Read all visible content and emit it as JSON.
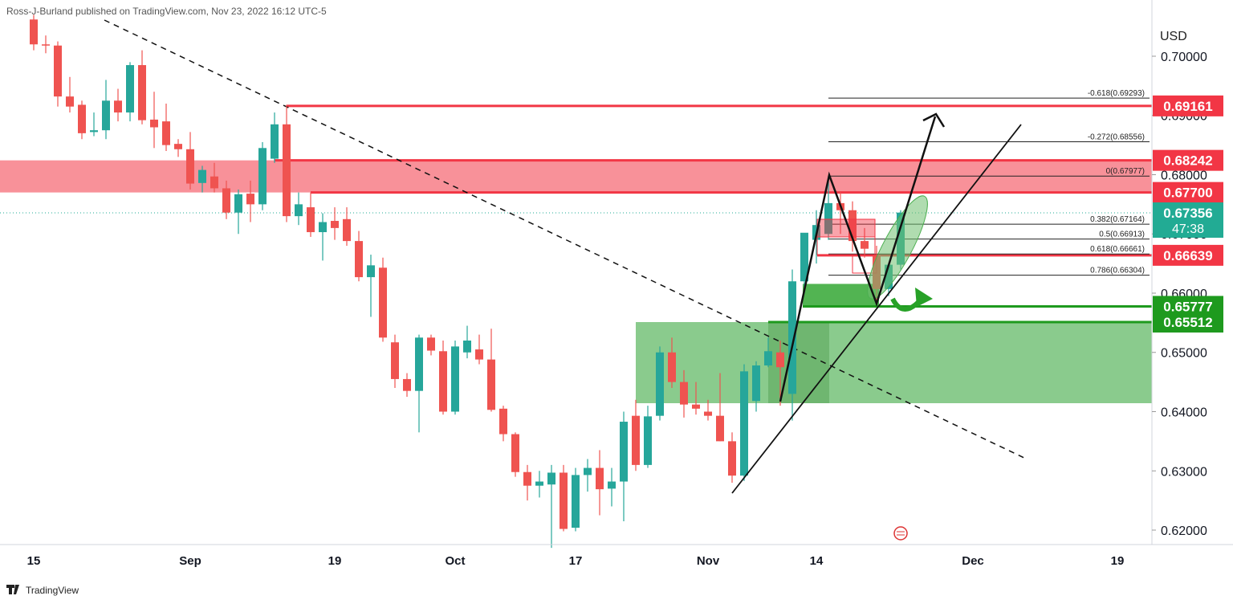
{
  "header": {
    "publisher": "Ross-J-Burland published on TradingView.com, Nov 23, 2022 16:12 UTC-5",
    "footer": "TradingView"
  },
  "chart_data": {
    "type": "candlestick",
    "currency": "USD",
    "categories": [
      "15",
      null,
      null,
      null,
      null,
      null,
      null,
      null,
      null,
      null,
      null,
      null,
      null,
      "Sep",
      null,
      null,
      null,
      null,
      null,
      null,
      null,
      null,
      null,
      null,
      null,
      "19",
      null,
      null,
      null,
      null,
      null,
      null,
      null,
      null,
      null,
      "Oct",
      null,
      null,
      null,
      null,
      null,
      null,
      null,
      null,
      null,
      "17",
      null,
      null,
      null,
      null,
      null,
      null,
      null,
      null,
      null,
      null,
      "Nov",
      null,
      null,
      null,
      null,
      null,
      null,
      null,
      null,
      "14",
      null,
      null,
      null,
      null,
      null,
      null,
      null,
      null,
      null,
      null,
      null,
      null,
      "Dec",
      null,
      null,
      null,
      null,
      null,
      null,
      null,
      null,
      null,
      null,
      null,
      "19"
    ],
    "open": [
      0.7062,
      0.702,
      0.7018,
      0.6932,
      0.6918,
      0.6872,
      0.6875,
      0.6925,
      0.6905,
      0.6985,
      0.6893,
      0.689,
      0.6852,
      0.6843,
      0.6786,
      0.6797,
      0.6777,
      0.6736,
      0.6768,
      0.675,
      0.6827,
      0.6885,
      0.673,
      0.6745,
      0.6703,
      0.6722,
      0.6725,
      0.6688,
      0.6627,
      0.6643,
      0.6517,
      0.6455,
      0.6435,
      0.6525,
      0.6502,
      0.64,
      0.65,
      0.6505,
      0.6488,
      0.6405,
      0.6362,
      0.6298,
      0.6275,
      0.6277,
      0.6297,
      0.6204,
      0.6293,
      0.6305,
      0.627,
      0.6282,
      0.6393,
      0.631,
      0.6393,
      0.65,
      0.645,
      0.6412,
      0.64,
      0.6393,
      0.635,
      0.6292,
      0.6418,
      0.6478,
      0.65,
      0.643,
      0.662,
      0.669,
      0.67,
      0.6752,
      0.674,
      0.6688,
      0.6665,
      0.6607,
      0.6648,
      null,
      null,
      null,
      null,
      null,
      null,
      null,
      null,
      null,
      null,
      null,
      null,
      null,
      null,
      null,
      null,
      null,
      null
    ],
    "high": [
      0.707,
      0.7035,
      0.7025,
      0.6965,
      0.6925,
      0.6905,
      0.696,
      0.6945,
      0.699,
      0.701,
      0.694,
      0.692,
      0.686,
      0.6872,
      0.6815,
      0.682,
      0.679,
      0.6775,
      0.679,
      0.6855,
      0.6905,
      0.6918,
      0.677,
      0.677,
      0.6735,
      0.6745,
      0.6745,
      0.6705,
      0.6665,
      0.666,
      0.653,
      0.6465,
      0.653,
      0.653,
      0.652,
      0.652,
      0.6545,
      0.653,
      0.654,
      0.641,
      0.6365,
      0.631,
      0.63,
      0.631,
      0.631,
      0.6305,
      0.632,
      0.6335,
      0.6305,
      0.64,
      0.642,
      0.641,
      0.651,
      0.6525,
      0.647,
      0.645,
      0.642,
      0.6465,
      0.6365,
      0.648,
      0.6485,
      0.6525,
      0.652,
      0.664,
      0.67,
      0.674,
      0.6798,
      0.677,
      0.6755,
      0.671,
      0.668,
      0.665,
      0.674,
      null,
      null,
      null,
      null,
      null,
      null,
      null,
      null,
      null,
      null,
      null,
      null,
      null,
      null,
      null,
      null,
      null,
      null
    ],
    "low": [
      0.701,
      0.7005,
      0.6915,
      0.6905,
      0.686,
      0.6865,
      0.686,
      0.689,
      0.689,
      0.6885,
      0.6845,
      0.684,
      0.683,
      0.6775,
      0.677,
      0.677,
      0.6725,
      0.67,
      0.672,
      0.674,
      0.682,
      0.672,
      0.6715,
      0.6695,
      0.6655,
      0.669,
      0.668,
      0.662,
      0.656,
      0.6518,
      0.644,
      0.6425,
      0.6365,
      0.6495,
      0.6395,
      0.6395,
      0.649,
      0.648,
      0.64,
      0.635,
      0.629,
      0.625,
      0.6255,
      0.617,
      0.6198,
      0.6198,
      0.6265,
      0.6225,
      0.624,
      0.6215,
      0.63,
      0.6305,
      0.6385,
      0.644,
      0.639,
      0.6395,
      0.6385,
      0.635,
      0.628,
      0.6283,
      0.64,
      0.6475,
      0.641,
      0.6385,
      0.66,
      0.665,
      0.669,
      0.67,
      0.667,
      0.666,
      0.6585,
      0.6595,
      0.664,
      null,
      null,
      null,
      null,
      null,
      null,
      null,
      null,
      null,
      null,
      null,
      null,
      null,
      null,
      null,
      null,
      null,
      null
    ],
    "close": [
      0.702,
      0.7018,
      0.6932,
      0.6915,
      0.687,
      0.6875,
      0.6925,
      0.6905,
      0.6985,
      0.6892,
      0.688,
      0.685,
      0.6843,
      0.6785,
      0.6808,
      0.6777,
      0.6736,
      0.6767,
      0.675,
      0.6845,
      0.6885,
      0.673,
      0.675,
      0.6703,
      0.672,
      0.671,
      0.6688,
      0.6627,
      0.6647,
      0.6525,
      0.6455,
      0.6435,
      0.6525,
      0.6503,
      0.64,
      0.651,
      0.652,
      0.6488,
      0.6403,
      0.6362,
      0.6298,
      0.6275,
      0.6282,
      0.6297,
      0.6202,
      0.6293,
      0.6305,
      0.6269,
      0.6282,
      0.6383,
      0.631,
      0.6392,
      0.65,
      0.645,
      0.6412,
      0.6405,
      0.6393,
      0.635,
      0.6292,
      0.6468,
      0.6478,
      0.6502,
      0.6475,
      0.662,
      0.6702,
      0.6715,
      0.6752,
      0.674,
      0.6688,
      0.6675,
      0.6607,
      0.6648,
      0.6736,
      null,
      null,
      null,
      null,
      null,
      null,
      null,
      null,
      null,
      null,
      null,
      null,
      null,
      null,
      null,
      null,
      null,
      null
    ],
    "up_color": "#26a69a",
    "down_color": "#ef5350",
    "ylim": [
      0.61756,
      0.70949
    ],
    "yticks": [
      {
        "value": 0.7,
        "label": "0.70000"
      },
      {
        "value": 0.69,
        "label": "0.69000"
      },
      {
        "value": 0.68,
        "label": "0.68000"
      },
      {
        "value": 0.67,
        "label": "0.67000"
      },
      {
        "value": 0.66,
        "label": "0.66000"
      },
      {
        "value": 0.65,
        "label": "0.65000"
      },
      {
        "value": 0.64,
        "label": "0.64000"
      },
      {
        "value": 0.63,
        "label": "0.63000"
      },
      {
        "value": 0.62,
        "label": "0.62000"
      }
    ],
    "price_levels": [
      {
        "value": 0.69161,
        "label": "0.69161",
        "color": "#f23645"
      },
      {
        "value": 0.68242,
        "label": "0.68242",
        "color": "#f23645"
      },
      {
        "value": 0.677,
        "label": "0.67700",
        "color": "#f23645"
      },
      {
        "value": 0.67356,
        "label": "0.67356",
        "color": "#22ab94",
        "countdown": "47:38"
      },
      {
        "value": 0.66639,
        "label": "0.66639",
        "color": "#f23645"
      },
      {
        "value": 0.65777,
        "label": "0.65777",
        "color": "#1e9a1e"
      },
      {
        "value": 0.65512,
        "label": "0.65512",
        "color": "#1e9a1e"
      }
    ],
    "fib_levels": [
      {
        "value": 0.69293,
        "label": "-0.618(0.69293)"
      },
      {
        "value": 0.68556,
        "label": "-0.272(0.68556)"
      },
      {
        "value": 0.67977,
        "label": "0(0.67977)"
      },
      {
        "value": 0.67164,
        "label": "0.382(0.67164)"
      },
      {
        "value": 0.66913,
        "label": "0.5(0.66913)"
      },
      {
        "value": 0.66661,
        "label": "0.618(0.66661)"
      },
      {
        "value": 0.66304,
        "label": "0.786(0.66304)"
      }
    ]
  }
}
